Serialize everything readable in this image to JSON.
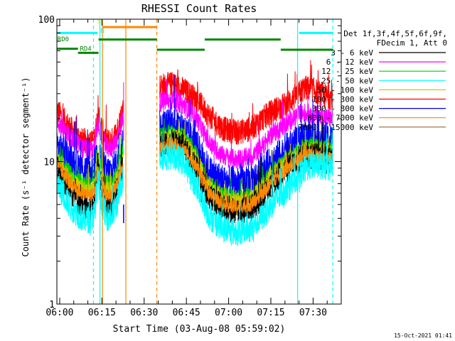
{
  "chart_data": {
    "type": "line",
    "title": "RHESSI Count Rates",
    "xlabel": "Start Time (03-Aug-08 05:59:02)",
    "ylabel": "Count Rate (s⁻¹ detector segment⁻¹)",
    "yscale": "log",
    "ylim": [
      1,
      100
    ],
    "xlim_minutes": [
      -1,
      100
    ],
    "x_ticks": [
      {
        "minute": 0,
        "label": "06:00"
      },
      {
        "minute": 15,
        "label": "06:15"
      },
      {
        "minute": 30,
        "label": "06:30"
      },
      {
        "minute": 45,
        "label": "06:45"
      },
      {
        "minute": 60,
        "label": "07:00"
      },
      {
        "minute": 75,
        "label": "07:15"
      },
      {
        "minute": 90,
        "label": "07:30"
      }
    ],
    "y_tick_labels": [
      {
        "value": 1,
        "label": "1"
      },
      {
        "value": 10,
        "label": "10"
      },
      {
        "value": 100,
        "label": "100"
      }
    ],
    "legend": {
      "placement": "top-right",
      "header": [
        "Det 1f,3f,4f,5f,6f,9f,",
        "FDecim 1, Att 0"
      ],
      "entries": [
        {
          "label": "3 - 6 keV",
          "color": "#000000"
        },
        {
          "label": "6 - 12 keV",
          "color": "#ff00ff"
        },
        {
          "label": "12 - 25 keV",
          "color": "#00cc00"
        },
        {
          "label": "25 - 50 keV",
          "color": "#00ffff"
        },
        {
          "label": "50 - 100 keV",
          "color": "#cccc00"
        },
        {
          "label": "100 - 300 keV",
          "color": "#ff0000"
        },
        {
          "label": "300 - 800 keV",
          "color": "#0000ff"
        },
        {
          "label": "800 - 7000 keV",
          "color": "#ff8800"
        },
        {
          "label": "7000 - 15000 keV",
          "color": "#996633"
        }
      ]
    },
    "segments_minutes": [
      [
        -1,
        22.5
      ],
      [
        35.5,
        97
      ]
    ],
    "series": [
      {
        "label": "100 - 300 keV",
        "color": "#ff0000",
        "noise": 0.09,
        "points": [
          [
            -1,
            23
          ],
          [
            4,
            17
          ],
          [
            8,
            14
          ],
          [
            11,
            13.5
          ],
          [
            12.5,
            15
          ],
          [
            13.5,
            21
          ],
          [
            15,
            17
          ],
          [
            16.5,
            14
          ],
          [
            18.5,
            14
          ],
          [
            20,
            16
          ],
          [
            21,
            18
          ],
          [
            22.5,
            24
          ],
          [
            35.5,
            34
          ],
          [
            40,
            35
          ],
          [
            44,
            32
          ],
          [
            49,
            27
          ],
          [
            53,
            21
          ],
          [
            58,
            17
          ],
          [
            63,
            16
          ],
          [
            68,
            17
          ],
          [
            72,
            20
          ],
          [
            76,
            23
          ],
          [
            80,
            25
          ],
          [
            84,
            29
          ],
          [
            87,
            33
          ],
          [
            90,
            32
          ],
          [
            94,
            29
          ],
          [
            97,
            28
          ]
        ]
      },
      {
        "label": "6 - 12 keV",
        "color": "#ff00ff",
        "noise": 0.07,
        "points": [
          [
            -1,
            19
          ],
          [
            4,
            14.5
          ],
          [
            8,
            12.5
          ],
          [
            11,
            12
          ],
          [
            12.5,
            13
          ],
          [
            13.5,
            18.5
          ],
          [
            15,
            15
          ],
          [
            16.5,
            12.5
          ],
          [
            18.5,
            12.5
          ],
          [
            20,
            14
          ],
          [
            21,
            16
          ],
          [
            22.5,
            21
          ],
          [
            35.5,
            26
          ],
          [
            40,
            27
          ],
          [
            44,
            25
          ],
          [
            49,
            19.5
          ],
          [
            53,
            13.5
          ],
          [
            58,
            11
          ],
          [
            63,
            10.3
          ],
          [
            68,
            10.8
          ],
          [
            72,
            12.8
          ],
          [
            76,
            16
          ],
          [
            80,
            18
          ],
          [
            84,
            21
          ],
          [
            87,
            22
          ],
          [
            90,
            21.5
          ],
          [
            94,
            20.5
          ],
          [
            97,
            20
          ]
        ]
      },
      {
        "label": "300 - 800 keV",
        "color": "#0000ff",
        "noise": 0.12,
        "points": [
          [
            -1,
            13
          ],
          [
            4,
            10
          ],
          [
            8,
            8.8
          ],
          [
            11,
            8.6
          ],
          [
            12.5,
            9.5
          ],
          [
            13.5,
            12.5
          ],
          [
            15,
            10
          ],
          [
            16.5,
            8.5
          ],
          [
            18.5,
            8.5
          ],
          [
            20,
            9.5
          ],
          [
            21,
            11
          ],
          [
            22.5,
            14
          ],
          [
            35.5,
            17.5
          ],
          [
            40,
            18.5
          ],
          [
            44,
            17
          ],
          [
            49,
            12.5
          ],
          [
            53,
            8.5
          ],
          [
            58,
            7.3
          ],
          [
            63,
            7
          ],
          [
            68,
            7.3
          ],
          [
            72,
            8.5
          ],
          [
            76,
            10.2
          ],
          [
            80,
            12
          ],
          [
            84,
            13.5
          ],
          [
            87,
            15
          ],
          [
            90,
            15
          ],
          [
            94,
            14.5
          ],
          [
            97,
            14
          ]
        ]
      },
      {
        "label": "12 - 25 keV",
        "color": "#00cc00",
        "noise": 0.06,
        "points": [
          [
            -1,
            11
          ],
          [
            4,
            8.2
          ],
          [
            8,
            7
          ],
          [
            11,
            6.9
          ],
          [
            12.5,
            7.5
          ],
          [
            13.5,
            11
          ],
          [
            15,
            8.5
          ],
          [
            16.5,
            7
          ],
          [
            18.5,
            7
          ],
          [
            20,
            8
          ],
          [
            21,
            9.3
          ],
          [
            22.5,
            11.5
          ],
          [
            35.5,
            15
          ],
          [
            40,
            16
          ],
          [
            44,
            15
          ],
          [
            49,
            11
          ],
          [
            53,
            7
          ],
          [
            58,
            5.8
          ],
          [
            63,
            5.5
          ],
          [
            68,
            5.8
          ],
          [
            72,
            7
          ],
          [
            76,
            8.7
          ],
          [
            80,
            10.2
          ],
          [
            84,
            11.8
          ],
          [
            87,
            13
          ],
          [
            90,
            13
          ],
          [
            94,
            12.5
          ],
          [
            97,
            12
          ]
        ]
      },
      {
        "label": "50 - 100 keV",
        "color": "#cccc00",
        "noise": 0.06,
        "points": [
          [
            -1,
            10
          ],
          [
            4,
            7.5
          ],
          [
            8,
            6.4
          ],
          [
            11,
            6.3
          ],
          [
            12.5,
            6.8
          ],
          [
            13.5,
            10
          ],
          [
            15,
            7.8
          ],
          [
            16.5,
            6.4
          ],
          [
            18.5,
            6.4
          ],
          [
            20,
            7.3
          ],
          [
            21,
            8.5
          ],
          [
            22.5,
            10.5
          ],
          [
            35.5,
            14
          ],
          [
            40,
            15
          ],
          [
            44,
            14
          ],
          [
            49,
            10.2
          ],
          [
            53,
            6.6
          ],
          [
            58,
            5.5
          ],
          [
            63,
            5.2
          ],
          [
            68,
            5.5
          ],
          [
            72,
            6.6
          ],
          [
            76,
            8.2
          ],
          [
            80,
            9.6
          ],
          [
            84,
            11
          ],
          [
            87,
            12.2
          ],
          [
            90,
            12.2
          ],
          [
            94,
            11.8
          ],
          [
            97,
            11.5
          ]
        ]
      },
      {
        "label": "3 - 6 keV",
        "color": "#000000",
        "noise": 0.1,
        "points": [
          [
            -1,
            9
          ],
          [
            4,
            6.2
          ],
          [
            8,
            5
          ],
          [
            11,
            4.8
          ],
          [
            12.5,
            5.5
          ],
          [
            13.5,
            9.5
          ],
          [
            15,
            6.5
          ],
          [
            16.5,
            5.1
          ],
          [
            18.5,
            5.1
          ],
          [
            20,
            6
          ],
          [
            21,
            7.3
          ],
          [
            22.5,
            9.5
          ],
          [
            35.5,
            12.5
          ],
          [
            40,
            13.5
          ],
          [
            44,
            12.5
          ],
          [
            49,
            8.5
          ],
          [
            53,
            5.6
          ],
          [
            58,
            4.7
          ],
          [
            63,
            4.5
          ],
          [
            68,
            4.7
          ],
          [
            72,
            5.7
          ],
          [
            76,
            7.2
          ],
          [
            80,
            8.6
          ],
          [
            84,
            10
          ],
          [
            87,
            11
          ],
          [
            90,
            11
          ],
          [
            94,
            10.7
          ],
          [
            97,
            10.5
          ]
        ]
      },
      {
        "label": "800 - 7000 keV",
        "color": "#ff8800",
        "noise": 0.05,
        "points": [
          [
            -1,
            9.5
          ],
          [
            4,
            7
          ],
          [
            8,
            6
          ],
          [
            11,
            5.8
          ],
          [
            12.5,
            6.3
          ],
          [
            13.5,
            9
          ],
          [
            15,
            7
          ],
          [
            16.5,
            5.8
          ],
          [
            18.5,
            5.8
          ],
          [
            20,
            6.6
          ],
          [
            21,
            7.7
          ],
          [
            22.5,
            9.5
          ],
          [
            35.5,
            12.5
          ],
          [
            40,
            13.2
          ],
          [
            44,
            12.3
          ],
          [
            49,
            9
          ],
          [
            53,
            6
          ],
          [
            58,
            5
          ],
          [
            63,
            4.8
          ],
          [
            68,
            5
          ],
          [
            72,
            6
          ],
          [
            76,
            7.4
          ],
          [
            80,
            8.7
          ],
          [
            84,
            10
          ],
          [
            87,
            11
          ],
          [
            90,
            11
          ],
          [
            94,
            10.6
          ],
          [
            97,
            10.3
          ]
        ]
      },
      {
        "label": "25 - 50 keV",
        "color": "#00ffff",
        "noise": 0.1,
        "points": [
          [
            -1,
            7
          ],
          [
            4,
            4.8
          ],
          [
            8,
            4
          ],
          [
            11,
            3.9
          ],
          [
            12.5,
            4.4
          ],
          [
            13.5,
            7.5
          ],
          [
            15,
            5.2
          ],
          [
            16.5,
            4.1
          ],
          [
            18.5,
            4.1
          ],
          [
            20,
            4.8
          ],
          [
            21,
            5.8
          ],
          [
            22.5,
            7.8
          ],
          [
            35.5,
            10.8
          ],
          [
            40,
            11
          ],
          [
            44,
            10
          ],
          [
            49,
            6.5
          ],
          [
            53,
            4.2
          ],
          [
            58,
            3.4
          ],
          [
            63,
            3.2
          ],
          [
            68,
            3.4
          ],
          [
            72,
            4.1
          ],
          [
            76,
            5.2
          ],
          [
            80,
            6.2
          ],
          [
            84,
            7.5
          ],
          [
            87,
            8.8
          ],
          [
            90,
            9.5
          ],
          [
            94,
            9.3
          ],
          [
            97,
            9
          ]
        ]
      }
    ],
    "annotations": {
      "vlines": [
        {
          "minute": -1,
          "color": "#00ffff",
          "dash": false
        },
        {
          "minute": 12,
          "color": "#00ffff",
          "dash": true
        },
        {
          "minute": 14.3,
          "color": "#00ffff",
          "dash": false
        },
        {
          "minute": 15.2,
          "color": "#ff8800",
          "dash": false
        },
        {
          "minute": 23.5,
          "color": "#ff8800",
          "dash": false
        },
        {
          "minute": 34.5,
          "color": "#ff8800",
          "dash": true
        },
        {
          "minute": 84.5,
          "color": "#00ffff",
          "dash": false
        },
        {
          "minute": 97,
          "color": "#00ffff",
          "dash": true
        }
      ],
      "bars": [
        {
          "from": -1,
          "to": 13.5,
          "y": 80,
          "color": "#00ffff"
        },
        {
          "from": 85,
          "to": 97,
          "y": 80,
          "color": "#00ffff"
        },
        {
          "from": 15.3,
          "to": 34.5,
          "y": 88,
          "color": "#ff8800"
        },
        {
          "from": 13.8,
          "to": 34.5,
          "y": 72,
          "color": "#008800"
        },
        {
          "from": 34.5,
          "to": 51.5,
          "y": 61,
          "color": "#008800"
        },
        {
          "from": 51.5,
          "to": 78.5,
          "y": 72,
          "color": "#008800"
        },
        {
          "from": 78.5,
          "to": 97,
          "y": 61,
          "color": "#008800"
        },
        {
          "from": -1,
          "to": 6.5,
          "y": 62,
          "color": "#008800"
        },
        {
          "from": 6.5,
          "to": 13.8,
          "y": 58,
          "color": "#008800"
        }
      ],
      "labels": [
        {
          "text": "RD0",
          "minute": -0.8,
          "y": 70,
          "color": "#008800"
        },
        {
          "text": "RD4",
          "minute": 7.2,
          "y": 60,
          "color": "#008800"
        },
        {
          "text": "S",
          "minute": 13.3,
          "y": 94,
          "color": "#cccc00"
        },
        {
          "text": "N",
          "minute": 14.5,
          "y": 80,
          "color": "#00ffff"
        }
      ]
    }
  },
  "footer": {
    "timestamp": "15-Oct-2021 01:41"
  }
}
